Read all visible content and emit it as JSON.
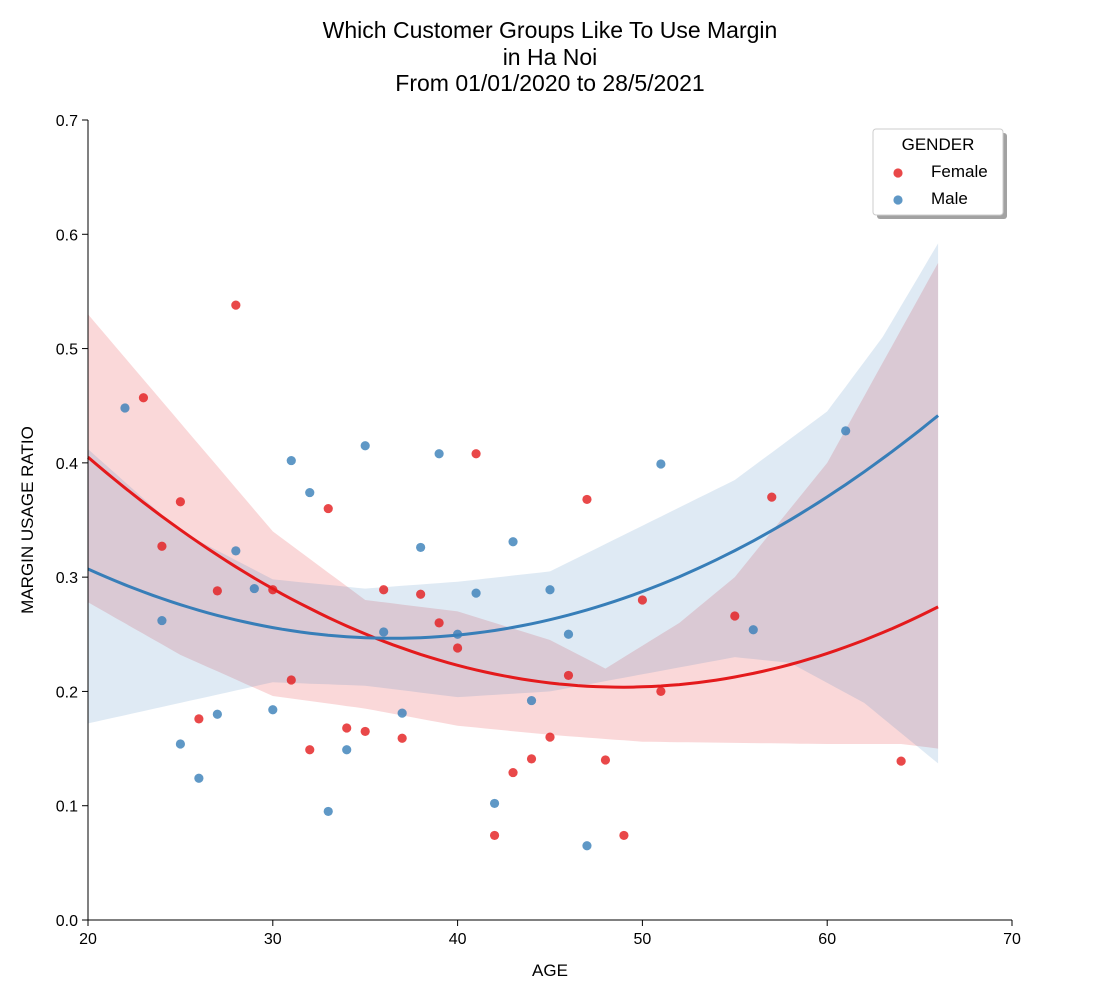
{
  "chart_data": {
    "type": "scatter",
    "title_lines": [
      "Which Customer Groups Like To Use Margin",
      "in Ha Noi",
      "From 01/01/2020 to 28/5/2021"
    ],
    "xlabel": "AGE",
    "ylabel": "MARGIN USAGE RATIO",
    "xlim": [
      20,
      70
    ],
    "ylim": [
      0.0,
      0.7
    ],
    "xticks": [
      "20",
      "30",
      "40",
      "50",
      "60",
      "70"
    ],
    "yticks": [
      "0.0",
      "0.1",
      "0.2",
      "0.3",
      "0.4",
      "0.5",
      "0.6",
      "0.7"
    ],
    "grid": false,
    "legend": {
      "title": "GENDER",
      "placement": "top-right"
    },
    "series": [
      {
        "name": "Female",
        "color": "#e41a1c",
        "points": [
          [
            23,
            0.457
          ],
          [
            24,
            0.327
          ],
          [
            25,
            0.366
          ],
          [
            26,
            0.176
          ],
          [
            27,
            0.288
          ],
          [
            28,
            0.538
          ],
          [
            30,
            0.289
          ],
          [
            31,
            0.21
          ],
          [
            32,
            0.149
          ],
          [
            33,
            0.36
          ],
          [
            34,
            0.168
          ],
          [
            35,
            0.165
          ],
          [
            36,
            0.289
          ],
          [
            37,
            0.159
          ],
          [
            38,
            0.285
          ],
          [
            39,
            0.26
          ],
          [
            40,
            0.238
          ],
          [
            41,
            0.408
          ],
          [
            42,
            0.074
          ],
          [
            43,
            0.129
          ],
          [
            44,
            0.141
          ],
          [
            45,
            0.16
          ],
          [
            46,
            0.214
          ],
          [
            47,
            0.368
          ],
          [
            48,
            0.14
          ],
          [
            49,
            0.074
          ],
          [
            50,
            0.28
          ],
          [
            51,
            0.2
          ],
          [
            55,
            0.266
          ],
          [
            57,
            0.37
          ],
          [
            64,
            0.139
          ]
        ],
        "fit": [
          [
            20,
            0.404
          ],
          [
            30,
            0.291
          ],
          [
            40,
            0.225
          ],
          [
            49,
            0.201
          ],
          [
            58,
            0.223
          ],
          [
            66,
            0.275
          ]
        ],
        "ci_lower": [
          [
            20,
            0.278
          ],
          [
            25,
            0.232
          ],
          [
            30,
            0.196
          ],
          [
            35,
            0.185
          ],
          [
            40,
            0.17
          ],
          [
            45,
            0.162
          ],
          [
            50,
            0.156
          ],
          [
            55,
            0.155
          ],
          [
            60,
            0.154
          ],
          [
            64,
            0.154
          ],
          [
            66,
            0.15
          ]
        ],
        "ci_upper": [
          [
            20,
            0.53
          ],
          [
            25,
            0.435
          ],
          [
            30,
            0.34
          ],
          [
            35,
            0.28
          ],
          [
            40,
            0.27
          ],
          [
            45,
            0.245
          ],
          [
            48,
            0.22
          ],
          [
            52,
            0.26
          ],
          [
            55,
            0.3
          ],
          [
            60,
            0.4
          ],
          [
            66,
            0.575
          ]
        ]
      },
      {
        "name": "Male",
        "color": "#377eb8",
        "points": [
          [
            22,
            0.448
          ],
          [
            24,
            0.262
          ],
          [
            25,
            0.154
          ],
          [
            26,
            0.124
          ],
          [
            27,
            0.18
          ],
          [
            28,
            0.323
          ],
          [
            29,
            0.29
          ],
          [
            30,
            0.184
          ],
          [
            31,
            0.402
          ],
          [
            32,
            0.374
          ],
          [
            33,
            0.095
          ],
          [
            34,
            0.149
          ],
          [
            35,
            0.415
          ],
          [
            36,
            0.252
          ],
          [
            37,
            0.181
          ],
          [
            38,
            0.326
          ],
          [
            39,
            0.408
          ],
          [
            40,
            0.25
          ],
          [
            41,
            0.286
          ],
          [
            42,
            0.102
          ],
          [
            43,
            0.331
          ],
          [
            44,
            0.192
          ],
          [
            45,
            0.289
          ],
          [
            46,
            0.25
          ],
          [
            47,
            0.065
          ],
          [
            51,
            0.399
          ],
          [
            56,
            0.254
          ],
          [
            61,
            0.428
          ]
        ],
        "fit": [
          [
            20,
            0.309
          ],
          [
            30,
            0.254
          ],
          [
            37,
            0.244
          ],
          [
            45,
            0.263
          ],
          [
            55,
            0.328
          ],
          [
            66,
            0.439
          ]
        ],
        "ci_lower": [
          [
            20,
            0.172
          ],
          [
            25,
            0.19
          ],
          [
            30,
            0.208
          ],
          [
            35,
            0.205
          ],
          [
            40,
            0.195
          ],
          [
            45,
            0.2
          ],
          [
            50,
            0.215
          ],
          [
            55,
            0.23
          ],
          [
            58,
            0.225
          ],
          [
            62,
            0.19
          ],
          [
            66,
            0.137
          ]
        ],
        "ci_upper": [
          [
            20,
            0.412
          ],
          [
            25,
            0.34
          ],
          [
            30,
            0.298
          ],
          [
            35,
            0.29
          ],
          [
            40,
            0.296
          ],
          [
            45,
            0.305
          ],
          [
            50,
            0.345
          ],
          [
            55,
            0.385
          ],
          [
            60,
            0.445
          ],
          [
            63,
            0.51
          ],
          [
            66,
            0.592
          ]
        ]
      }
    ]
  }
}
